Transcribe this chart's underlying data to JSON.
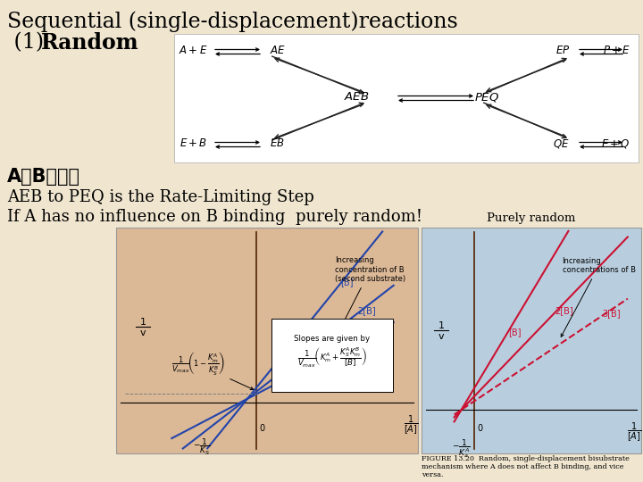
{
  "bg_color": "#f0e6d0",
  "title_line1": "Sequential (single-displacement)reactions",
  "title_line2_normal": " (1)",
  "title_line2_bold": "Random",
  "text_chinese": "A、B非競爭",
  "text_line3": "AEB to PEQ is the Rate-Limiting Step",
  "text_line4": "If A has no influence on B binding  purely random!",
  "diagram_bg": "#ffffff",
  "left_graph_bg": "#dbb896",
  "right_graph_bg": "#b8cede",
  "purely_random": "Purely random",
  "figure_caption": "FIGURE 13.20  Random, single-displacement bisubstrate\nmechanism where A does not affect B binding, and vice\nversa.",
  "title1_fontsize": 17,
  "title2_fontsize": 17,
  "chinese_fontsize": 15,
  "body_fontsize": 13
}
